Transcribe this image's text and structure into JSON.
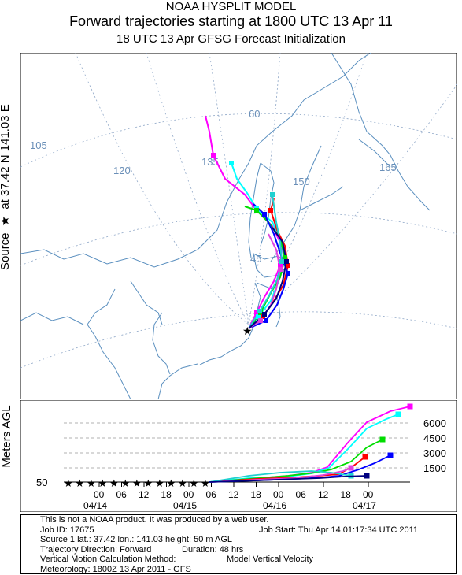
{
  "title": {
    "line1": "NOAA HYSPLIT MODEL",
    "line2": "Forward trajectories starting at 1800 UTC 13 Apr 11",
    "line3": "18 UTC 13 Apr    GFSG  Forecast Initialization"
  },
  "side_label": {
    "prefix": "Source",
    "star": "★",
    "text": "at   37.42 N  141.03 E"
  },
  "vertical_axis_label": "Meters AGL",
  "map": {
    "lon_labels": [
      "105",
      "120",
      "135",
      "150",
      "165"
    ],
    "lat_labels": [
      "60",
      "45"
    ],
    "colors": {
      "coast": "#5a8fbf",
      "grid": "#90a8c8"
    }
  },
  "source_marker": "★",
  "trajectory_colors": [
    "#ff00ff",
    "#00ffff",
    "#00dd00",
    "#ff0000",
    "#0000ff",
    "#e040e0",
    "#20d0d0",
    "#000080"
  ],
  "vertical": {
    "base_label": "50",
    "height_ticks": [
      "6000",
      "4500",
      "3000",
      "1500"
    ],
    "hour_ticks": [
      "00",
      "06",
      "12",
      "18",
      "00",
      "06",
      "12",
      "18",
      "00",
      "06",
      "12",
      "18",
      "00"
    ],
    "dates": [
      "04/14",
      "04/15",
      "04/16",
      "04/17"
    ]
  },
  "info": {
    "line1": "This is not a NOAA product.  It was produced by a web user.",
    "job_id": "Job ID: 17675",
    "job_start": "Job Start: Thu Apr 14 01:17:34 UTC 2011",
    "source": "Source 1      lat.: 37.42    lon.: 141.03      height: 50 m AGL",
    "direction": "Trajectory Direction: Forward",
    "duration": "Duration: 48 hrs",
    "vmethod": "Vertical Motion Calculation Method:",
    "vmethod_val": "Model Vertical Velocity",
    "met": "Meteorology: 1800Z 13 Apr 2011 - GFS"
  }
}
